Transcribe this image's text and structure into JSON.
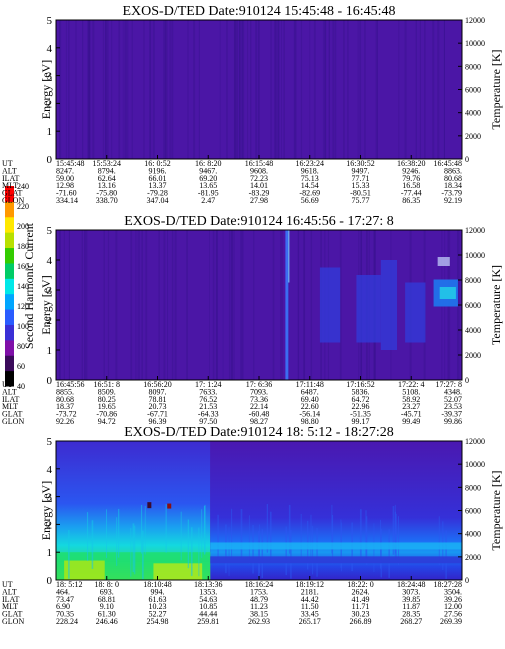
{
  "colors": {
    "background": "#4b16a6",
    "stripe": "#3a1290",
    "frame": "#000000",
    "colorbar": [
      "#000000",
      "#3a0a5a",
      "#7f0fa8",
      "#3a2fd6",
      "#2a5cff",
      "#00a6ff",
      "#00e8e8",
      "#00cc66",
      "#33cc00",
      "#b8e000",
      "#ffe800",
      "#ff9900",
      "#ff0000"
    ]
  },
  "colorbar": {
    "label": "Second Harmonic Current",
    "ticks": [
      "40",
      "60",
      "80",
      "100",
      "120",
      "140",
      "160",
      "180",
      "200",
      "220",
      "240"
    ]
  },
  "ephemeris_labels": [
    "UT",
    "ALT",
    "ILAT",
    "MLT",
    "GLAT",
    "GLON"
  ],
  "panels": [
    {
      "title": "EXOS-D/TED   Date:910124  15:45:48 - 16:45:48",
      "ylabel_left": "Energy [eV]",
      "ylabel_right": "Temperature [K]",
      "yticks_left": [
        "0",
        "1",
        "2",
        "3",
        "4",
        "5"
      ],
      "yticks_right": [
        "0",
        "2000",
        "4000",
        "6000",
        "8000",
        "10000",
        "12000"
      ],
      "ephemeris": [
        [
          "15:45:48",
          "8247.",
          "59.00",
          "12.98",
          "-71.60",
          "334.14"
        ],
        [
          "15:53:24",
          "8794.",
          "62.64",
          "13.16",
          "-75.80",
          "338.70"
        ],
        [
          "16: 0:52",
          "9196.",
          "66.01",
          "13.37",
          "-79.28",
          "347.04"
        ],
        [
          "16: 8:20",
          "9467.",
          "69.20",
          "13.65",
          "-81.95",
          "2.47"
        ],
        [
          "16:15:48",
          "9608.",
          "72.23",
          "14.01",
          "-83.29",
          "27.98"
        ],
        [
          "16:23:24",
          "9618.",
          "75.13",
          "14.54",
          "-82.69",
          "56.69"
        ],
        [
          "16:30:52",
          "9497.",
          "77.71",
          "15.33",
          "-80.51",
          "75.77"
        ],
        [
          "16:38:20",
          "9246.",
          "79.76",
          "16.58",
          "-77.44",
          "86.35"
        ],
        [
          "16:45:48",
          "8863.",
          "80.68",
          "18.34",
          "-73.79",
          "92.19"
        ]
      ]
    },
    {
      "title": "EXOS-D/TED   Date:910124  16:45:56 - 17:27: 8",
      "ylabel_left": "Energy [eV]",
      "ylabel_right": "Temperature [K]",
      "yticks_left": [
        "0",
        "1",
        "2",
        "3",
        "4",
        "5"
      ],
      "yticks_right": [
        "0",
        "2000",
        "4000",
        "6000",
        "8000",
        "10000",
        "12000"
      ],
      "ephemeris": [
        [
          "16:45:56",
          "8855.",
          "80.68",
          "18.37",
          "-73.72",
          "92.26"
        ],
        [
          "16:51: 8",
          "8509.",
          "80.25",
          "19.65",
          "-70.86",
          "94.72"
        ],
        [
          "16:56:20",
          "8097.",
          "78.81",
          "20.73",
          "-67.71",
          "96.39"
        ],
        [
          "17: 1:24",
          "7633.",
          "76.52",
          "21.53",
          "-64.33",
          "97.50"
        ],
        [
          "17: 6:36",
          "7093.",
          "73.36",
          "22.14",
          "-60.48",
          "98.27"
        ],
        [
          "17:11:48",
          "6487.",
          "69.40",
          "22.60",
          "-56.14",
          "98.80"
        ],
        [
          "17:16:52",
          "5836.",
          "64.72",
          "22.96",
          "-51.35",
          "99.17"
        ],
        [
          "17:22: 4",
          "5108.",
          "58.92",
          "23.27",
          "-45.71",
          "99.49"
        ],
        [
          "17:27: 8",
          "4348.",
          "52.07",
          "23.53",
          "-39.37",
          "99.86"
        ]
      ]
    },
    {
      "title": "EXOS-D/TED   Date:910124  18: 5:12 - 18:27:28",
      "ylabel_left": "Energy [eV]",
      "ylabel_right": "Temperature [K]",
      "yticks_left": [
        "0",
        "1",
        "2",
        "3",
        "4",
        "5"
      ],
      "yticks_right": [
        "0",
        "2000",
        "4000",
        "6000",
        "8000",
        "10000",
        "12000"
      ],
      "ephemeris": [
        [
          "18: 5:12",
          "464.",
          "73.47",
          "6.90",
          "70.35",
          "228.24"
        ],
        [
          "18: 8: 0",
          "693.",
          "68.81",
          "9.10",
          "61.30",
          "246.46"
        ],
        [
          "18:10:48",
          "994.",
          "61.63",
          "10.23",
          "52.27",
          "254.98"
        ],
        [
          "18:13:36",
          "1353.",
          "54.63",
          "10.85",
          "44.44",
          "259.81"
        ],
        [
          "18:16:24",
          "1753.",
          "48.79",
          "11.23",
          "38.15",
          "262.93"
        ],
        [
          "18:19:12",
          "2181.",
          "44.42",
          "11.50",
          "33.45",
          "265.17"
        ],
        [
          "18:22: 0",
          "2624.",
          "41.49",
          "11.71",
          "30.23",
          "266.89"
        ],
        [
          "18:24:48",
          "3073.",
          "39.85",
          "11.87",
          "28.35",
          "268.27"
        ],
        [
          "18:27:28",
          "3504.",
          "39.26",
          "12.00",
          "27.56",
          "269.39"
        ]
      ]
    }
  ],
  "chart_data": [
    {
      "type": "heatmap",
      "title": "EXOS-D/TED   Date:910124  15:45:48 - 16:45:48",
      "xlabel": "",
      "ylabel": "Energy [eV]",
      "y2label": "Temperature [K]",
      "ylim": [
        0,
        5
      ],
      "y2lim": [
        0,
        12000
      ],
      "x": [
        "15:45:48",
        "15:53:24",
        "16: 0:52",
        "16: 8:20",
        "16:15:48",
        "16:23:24",
        "16:30:52",
        "16:38:20",
        "16:45:48"
      ],
      "colorbar_label": "Second Harmonic Current",
      "colorbar_range": [
        40,
        240
      ]
    },
    {
      "type": "heatmap",
      "title": "EXOS-D/TED   Date:910124  16:45:56 - 17:27: 8",
      "xlabel": "",
      "ylabel": "Energy [eV]",
      "y2label": "Temperature [K]",
      "ylim": [
        0,
        5
      ],
      "y2lim": [
        0,
        12000
      ],
      "x": [
        "16:45:56",
        "16:51: 8",
        "16:56:20",
        "17: 1:24",
        "17: 6:36",
        "17:11:48",
        "17:16:52",
        "17:22: 4",
        "17:27: 8"
      ],
      "colorbar_label": "Second Harmonic Current",
      "colorbar_range": [
        40,
        240
      ]
    },
    {
      "type": "heatmap",
      "title": "EXOS-D/TED   Date:910124  18: 5:12 - 18:27:28",
      "xlabel": "",
      "ylabel": "Energy [eV]",
      "y2label": "Temperature [K]",
      "ylim": [
        0,
        5
      ],
      "y2lim": [
        0,
        12000
      ],
      "x": [
        "18: 5:12",
        "18: 8: 0",
        "18:10:48",
        "18:13:36",
        "18:16:24",
        "18:19:12",
        "18:22: 0",
        "18:24:48",
        "18:27:28"
      ],
      "colorbar_label": "Second Harmonic Current",
      "colorbar_range": [
        40,
        240
      ]
    }
  ]
}
